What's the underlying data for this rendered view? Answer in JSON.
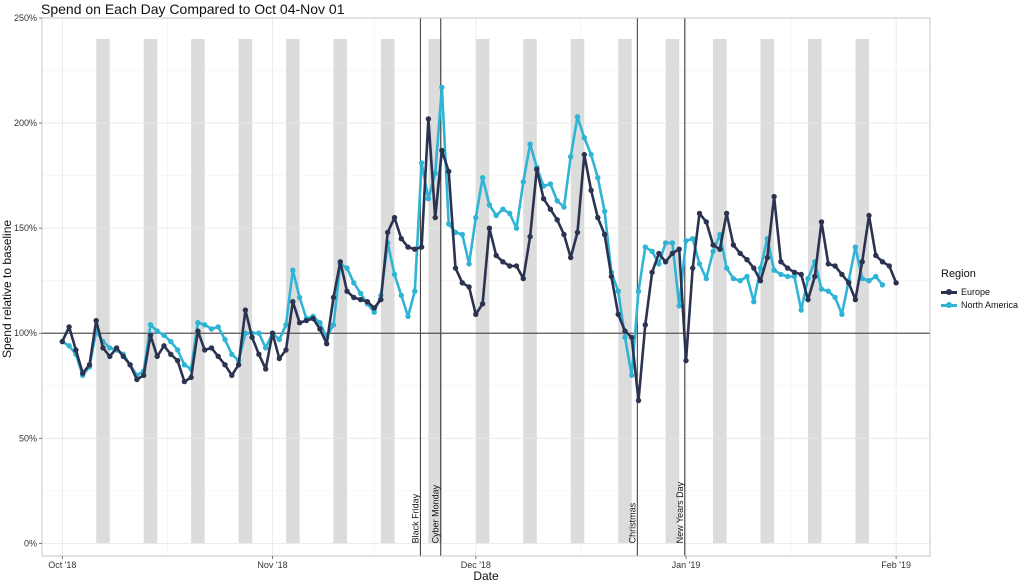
{
  "chart_data": {
    "type": "line",
    "title": "Spend on Each Day Compared to Oct 04-Nov 01",
    "xlabel": "Date",
    "ylabel": "Spend relative to baseline",
    "x_ticks": [
      {
        "date": "2018-10-01",
        "label": "Oct '18"
      },
      {
        "date": "2018-11-01",
        "label": "Nov '18"
      },
      {
        "date": "2018-12-01",
        "label": "Dec '18"
      },
      {
        "date": "2019-01-01",
        "label": "Jan '19"
      },
      {
        "date": "2019-02-01",
        "label": "Feb '19"
      }
    ],
    "y_ticks": [
      {
        "value": 0,
        "label": "0%"
      },
      {
        "value": 50,
        "label": "50%"
      },
      {
        "value": 100,
        "label": "100%"
      },
      {
        "value": 150,
        "label": "150%"
      },
      {
        "value": 200,
        "label": "200%"
      },
      {
        "value": 250,
        "label": "250%"
      }
    ],
    "xlim": [
      "2018-09-28",
      "2019-02-06"
    ],
    "ylim": [
      -6,
      250
    ],
    "grid": true,
    "baseline": 100,
    "weekend_shading": true,
    "weekend_dates": [
      "2018-10-06",
      "2018-10-13",
      "2018-10-20",
      "2018-10-27",
      "2018-11-03",
      "2018-11-10",
      "2018-11-17",
      "2018-11-24",
      "2018-12-01",
      "2018-12-08",
      "2018-12-15",
      "2018-12-22",
      "2018-12-29",
      "2019-01-05",
      "2019-01-12",
      "2019-01-19",
      "2019-01-26"
    ],
    "events": [
      {
        "date": "2018-11-23",
        "label": "Black Friday"
      },
      {
        "date": "2018-11-26",
        "label": "Cyber Monday"
      },
      {
        "date": "2018-12-25",
        "label": "Christmas"
      },
      {
        "date": "2019-01-01",
        "label": "New Years Day"
      }
    ],
    "legend_title": "Region",
    "legend_position": "right",
    "start_date": "2018-10-01",
    "series": [
      {
        "name": "Europe",
        "color": "#2b3350",
        "values": [
          96,
          103,
          92,
          81,
          85,
          106,
          93,
          89,
          93,
          89,
          85,
          78,
          80,
          99,
          89,
          94,
          90,
          87,
          77,
          79,
          101,
          92,
          93,
          89,
          85,
          80,
          85,
          111,
          98,
          90,
          83,
          100,
          88,
          92,
          115,
          105,
          106,
          107,
          102,
          95,
          117,
          134,
          120,
          117,
          116,
          115,
          112,
          116,
          148,
          155,
          145,
          141,
          140,
          141,
          202,
          155,
          187,
          177,
          131,
          124,
          122,
          109,
          114,
          150,
          137,
          134,
          132,
          132,
          126,
          146,
          178,
          164,
          159,
          154,
          147,
          136,
          148,
          185,
          168,
          155,
          147,
          127,
          109,
          101,
          98,
          68,
          104,
          129,
          138,
          134,
          138,
          140,
          87,
          131,
          157,
          153,
          142,
          140,
          157,
          142,
          138,
          135,
          131,
          125,
          136,
          165,
          134,
          131,
          129,
          128,
          116,
          127,
          153,
          133,
          132,
          128,
          124,
          116,
          134,
          156,
          137,
          134,
          132,
          124
        ]
      },
      {
        "name": "North America",
        "color": "#2fb4d5",
        "values": [
          96,
          94,
          90,
          80,
          84,
          101,
          96,
          93,
          92,
          90,
          85,
          80,
          82,
          104,
          101,
          99,
          96,
          92,
          85,
          83,
          105,
          104,
          102,
          103,
          97,
          90,
          87,
          100,
          100,
          100,
          93,
          100,
          97,
          104,
          130,
          117,
          107,
          108,
          105,
          98,
          104,
          133,
          131,
          124,
          119,
          114,
          110,
          118,
          143,
          128,
          118,
          108,
          120,
          181,
          164,
          176,
          217,
          152,
          148,
          147,
          133,
          155,
          174,
          161,
          156,
          159,
          157,
          150,
          172,
          190,
          179,
          170,
          171,
          163,
          160,
          184,
          203,
          193,
          185,
          174,
          158,
          129,
          120,
          98,
          80,
          120,
          141,
          139,
          133,
          143,
          143,
          113,
          144,
          145,
          133,
          126,
          139,
          147,
          131,
          126,
          125,
          127,
          115,
          131,
          145,
          130,
          128,
          127,
          127,
          111,
          126,
          134,
          121,
          120,
          117,
          109,
          125,
          141,
          126,
          125,
          127,
          123
        ]
      }
    ]
  }
}
